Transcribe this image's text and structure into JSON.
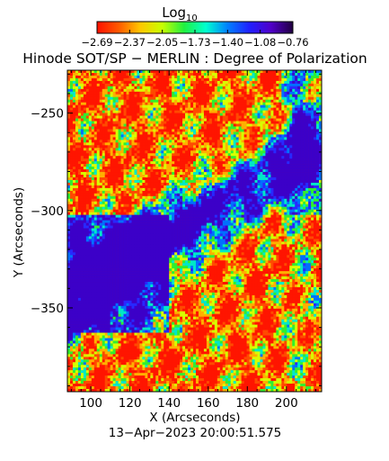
{
  "chart_data": {
    "type": "heatmap",
    "title": "Hinode SOT/SP − MERLIN : Degree of Polarization",
    "xlabel": "X (Arcseconds)",
    "ylabel": "Y (Arcseconds)",
    "xlim": [
      88,
      218
    ],
    "ylim": [
      -393,
      -228
    ],
    "x_ticks": [
      100,
      120,
      140,
      160,
      180,
      200
    ],
    "x_tick_labels": [
      "100",
      "120",
      "140",
      "160",
      "180",
      "200"
    ],
    "y_ticks": [
      -250,
      -300,
      -350
    ],
    "y_tick_labels": [
      "−250",
      "−300",
      "−350"
    ],
    "colorbar": {
      "label_main": "Log",
      "label_sub": "10",
      "tick_labels": [
        "−2.69",
        "−2.37",
        "−2.05",
        "−1.73",
        "−1.40",
        "−1.08",
        "−0.76"
      ],
      "range": [
        -2.69,
        -0.76
      ],
      "colors": [
        "#ff1000",
        "#ff5a00",
        "#ffc800",
        "#c8ff00",
        "#20f040",
        "#00ffd0",
        "#0080ff",
        "#2020ff",
        "#5000c8",
        "#200040"
      ]
    },
    "grid": false,
    "timestamp": "13−Apr−2023 20:00:51.575"
  }
}
